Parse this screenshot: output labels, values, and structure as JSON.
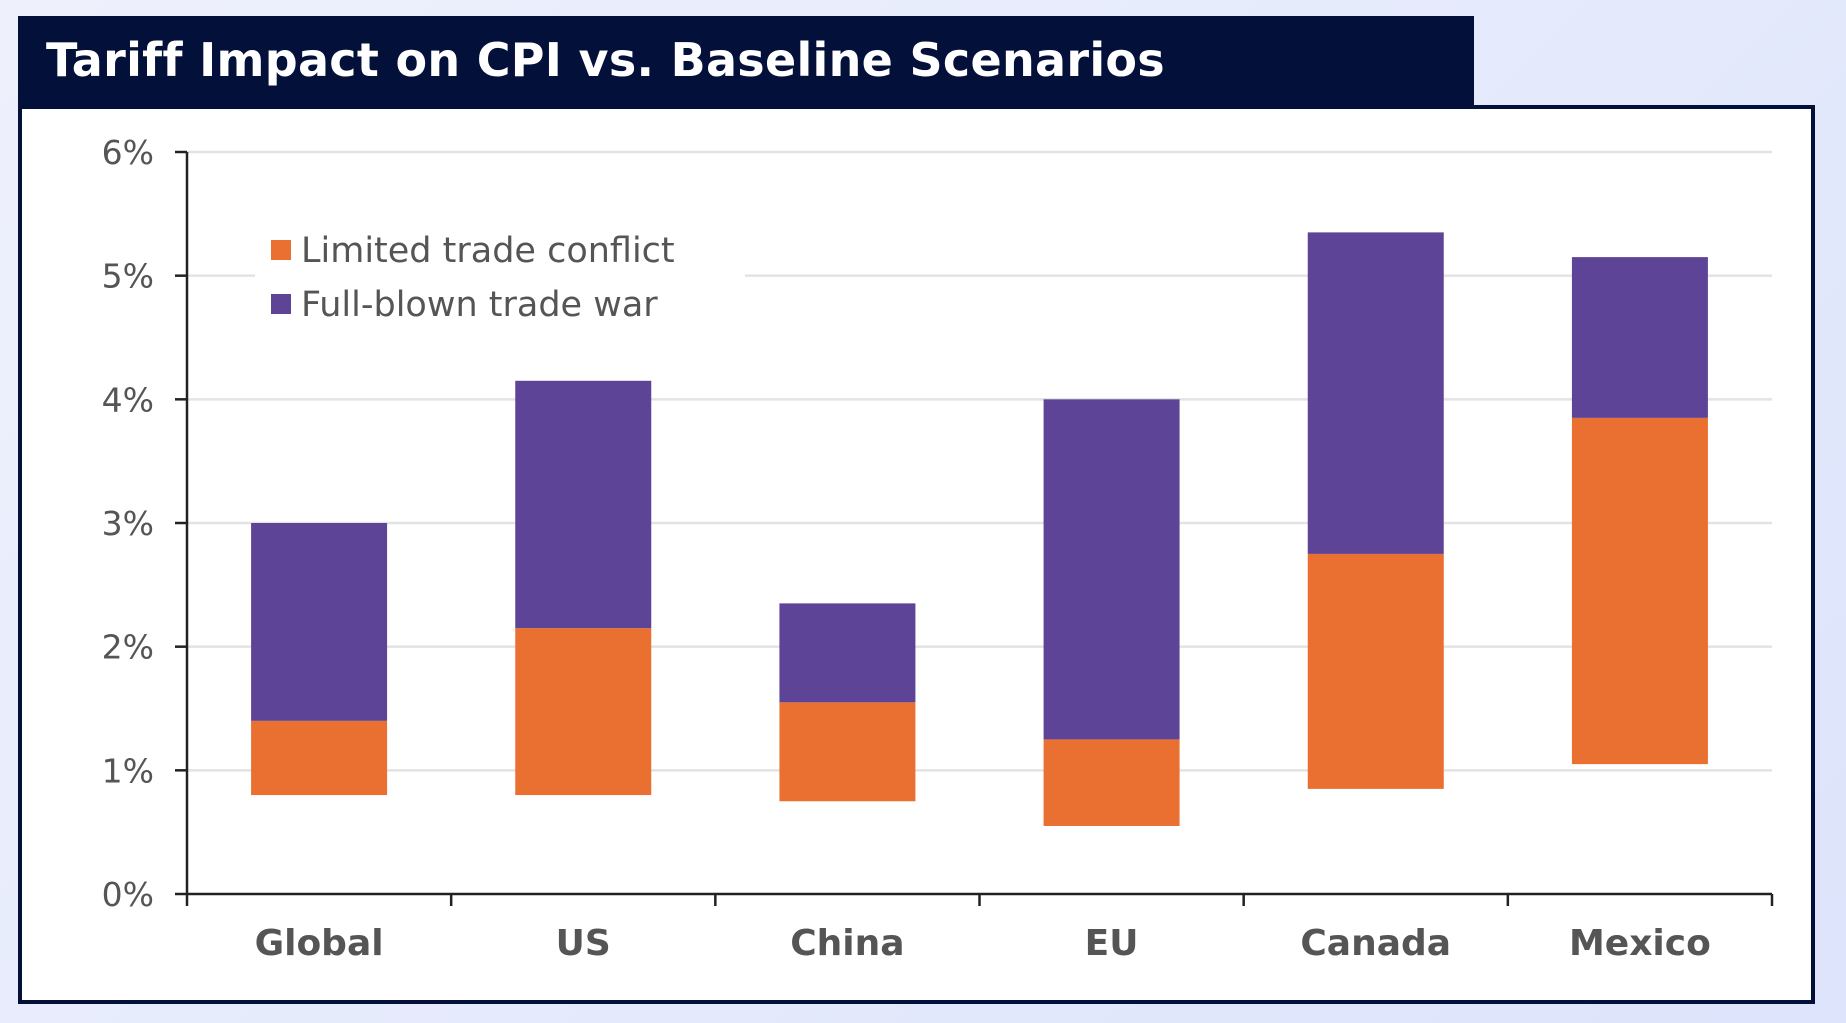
{
  "title": "Tariff Impact on CPI vs. Baseline Scenarios",
  "chart_data": {
    "type": "bar",
    "stacked": "floating",
    "title": "Tariff Impact on CPI vs. Baseline Scenarios",
    "categories": [
      "Global",
      "US",
      "China",
      "EU",
      "Canada",
      "Mexico"
    ],
    "series": [
      {
        "name": "Limited trade conflict",
        "color": "#e97031",
        "low": [
          0.8,
          0.8,
          0.75,
          0.55,
          0.85,
          1.05
        ],
        "high": [
          1.4,
          2.15,
          1.55,
          1.25,
          2.75,
          3.85
        ]
      },
      {
        "name": "Full-blown trade war",
        "color": "#5e4496",
        "low": [
          1.4,
          2.15,
          1.55,
          1.25,
          2.75,
          3.85
        ],
        "high": [
          3.0,
          4.15,
          2.35,
          4.0,
          5.35,
          5.15
        ]
      }
    ],
    "yticks": [
      "0%",
      "1%",
      "2%",
      "3%",
      "4%",
      "5%",
      "6%"
    ],
    "ylim": [
      0,
      6
    ],
    "grid": true,
    "legend_position": "top-left",
    "xlabel": "",
    "ylabel": ""
  }
}
